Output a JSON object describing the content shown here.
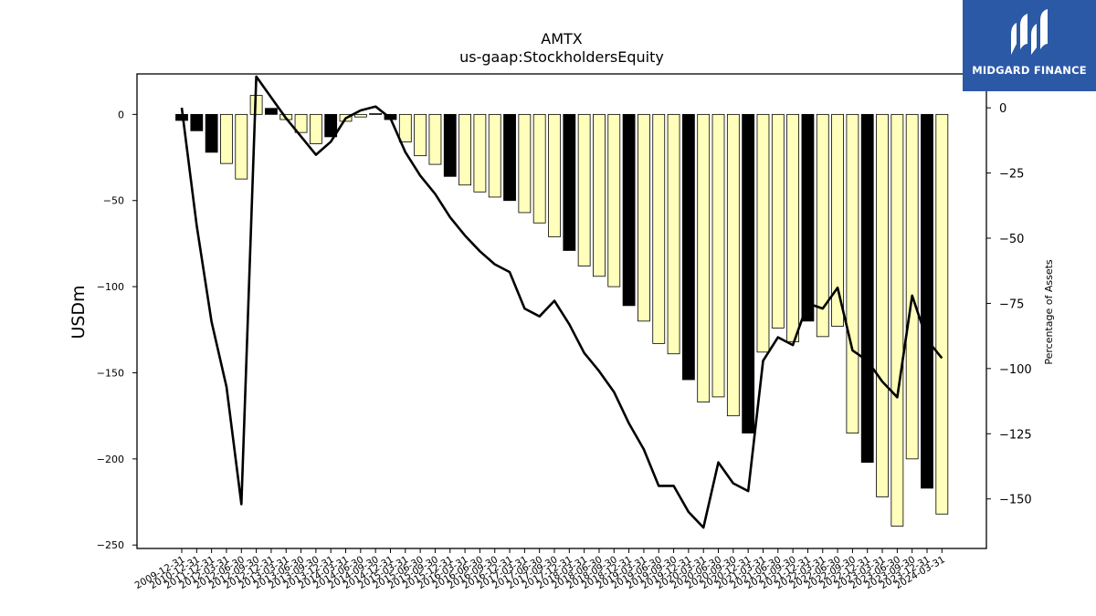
{
  "brand": {
    "name": "MIDGARD FINANCE",
    "bg_color": "#2c59a6"
  },
  "chart_data": {
    "type": "bar",
    "title": "AMTX",
    "subtitle": "us-gaap:StockholdersEquity",
    "ylabel": "USDm",
    "y2label": "Percentage of Assets",
    "ylim": [
      -252,
      23.5
    ],
    "y2lim": [
      -169,
      13
    ],
    "yticks": [
      0,
      -50,
      -100,
      -150,
      -200,
      -250
    ],
    "y2ticks": [
      0,
      -25,
      -50,
      -75,
      -100,
      -125,
      -150
    ],
    "colors": {
      "yearend_bar": "#000000",
      "quarter_bar": "#ffffbb",
      "line": "#000000"
    },
    "categories": [
      "2009-12-31",
      "2010-12-31",
      "2011-12-31",
      "2012-03-31",
      "2012-06-30",
      "2012-09-30",
      "2012-12-31",
      "2013-03-31",
      "2013-06-30",
      "2013-09-30",
      "2013-12-31",
      "2014-03-31",
      "2014-06-30",
      "2014-09-30",
      "2014-12-31",
      "2015-03-31",
      "2015-06-30",
      "2015-09-30",
      "2015-12-31",
      "2016-03-31",
      "2016-06-30",
      "2016-09-30",
      "2016-12-31",
      "2017-03-31",
      "2017-06-30",
      "2017-09-30",
      "2017-12-31",
      "2018-03-31",
      "2018-06-30",
      "2018-09-30",
      "2018-12-31",
      "2019-03-31",
      "2019-06-30",
      "2019-09-30",
      "2019-12-31",
      "2020-03-31",
      "2020-06-30",
      "2020-09-30",
      "2020-12-31",
      "2021-03-31",
      "2021-06-30",
      "2021-09-30",
      "2021-12-31",
      "2022-03-31",
      "2022-06-30",
      "2022-09-30",
      "2022-12-31",
      "2023-03-31",
      "2023-06-30",
      "2023-09-30",
      "2023-12-31",
      "2024-03-31"
    ],
    "x_tick_labels": [
      "2009-12-31",
      "2010-12-31",
      "2011-12-31",
      "2012-03-31",
      "2012-06-30",
      "2012-09-30",
      "2012-12-31",
      "2013-03-31",
      "2013-06-30",
      "2013-09-30",
      "2013-12-31",
      "2014-03-31",
      "2014-06-30",
      "2014-09-30",
      "2014-12-31",
      "2015-03-31",
      "2015-06-30",
      "2015-09-30",
      "2015-12-31",
      "2016-03-31",
      "2016-06-30",
      "2016-09-30",
      "2016-12-31",
      "2017-03-31",
      "2017-06-30",
      "2017-09-30",
      "2017-12-31",
      "2018-03-31",
      "2018-06-30",
      "2018-09-30",
      "2018-12-31",
      "2019-03-31",
      "2019-06-30",
      "2019-09-30",
      "2019-12-31",
      "2020-03-31",
      "2020-06-30",
      "2020-09-30",
      "2020-12-31",
      "2021-03-31",
      "2021-06-30",
      "2021-09-30",
      "2021-12-31",
      "2022-03-31",
      "2022-06-30",
      "2022-09-30",
      "2022-12-31",
      "2023-03-31",
      "2023-06-30",
      "2023-09-30",
      "2023-12-31",
      "2024-03-31"
    ],
    "series": [
      {
        "values": [
          -3.5,
          -9.5,
          -22,
          -28.5,
          -37.5,
          11,
          3.5,
          -3,
          -10.5,
          -17,
          -13,
          -4,
          -1.5,
          0.5,
          -3,
          -16,
          -24,
          -29,
          -36,
          -41,
          -45,
          -48,
          -50,
          -57,
          -63,
          -71,
          -79,
          -88,
          -94,
          -100,
          -111,
          -120,
          -133,
          -139,
          -154,
          -167,
          -164,
          -175,
          -185,
          -138,
          -124,
          -132,
          -120,
          -129,
          -123,
          -185,
          -202,
          -222,
          -239,
          -200,
          -217,
          -232
        ]
      },
      {
        "values": [
          0,
          -45,
          -82,
          -107,
          -152,
          12,
          4,
          -4,
          -11,
          -18,
          -13,
          -4,
          -1,
          0.5,
          -4,
          -17,
          -26,
          -33,
          -42,
          -49,
          -55,
          -60,
          -63,
          -77,
          -80,
          -74,
          -83,
          -94,
          -101,
          -109,
          -121,
          -131,
          -145,
          -145,
          -155,
          -161,
          -136,
          -144,
          -147,
          -97,
          -88,
          -91,
          -75,
          -77,
          -69,
          -93,
          -97,
          -105,
          -111,
          -72,
          -89,
          -96
        ]
      }
    ],
    "grid": false,
    "legend": "none"
  }
}
